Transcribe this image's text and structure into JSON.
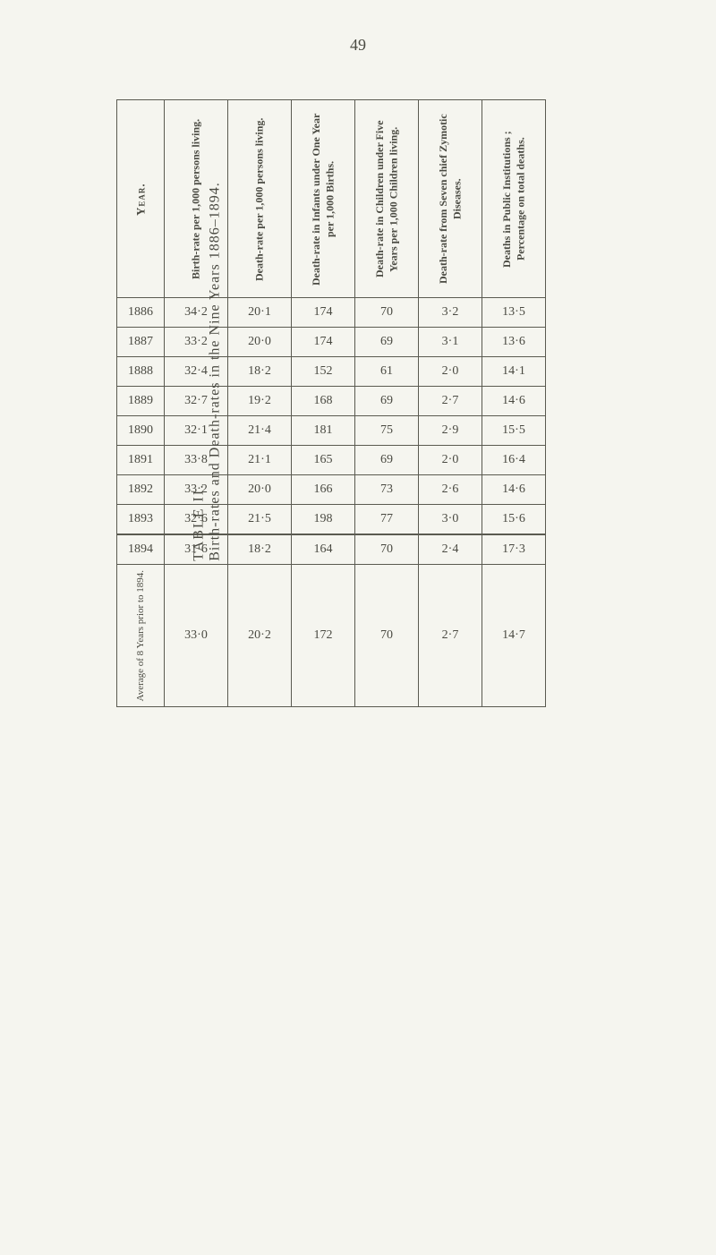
{
  "page_number": "49",
  "side_title_table": "TABLE II.",
  "side_title_caption": "Birth-rates and Death-rates in the Nine Years 1886–1894.",
  "headers": {
    "year": "Year.",
    "birth_rate": "Birth-rate per 1,000 persons living.",
    "death_rate": "Death-rate per 1,000 persons living.",
    "infants": "Death-rate in Infants under One Year per 1,000 Births.",
    "children": "Death-rate in Children under Five Years per 1,000 Children living.",
    "zymotic": "Death-rate from Seven chief Zymotic Diseases.",
    "public": "Deaths in Public Institutions ; Percentage on total deaths."
  },
  "rows": [
    {
      "year": "1886",
      "birth": "34·2",
      "death": "20·1",
      "infants": "174",
      "children": "70",
      "zymotic": "3·2",
      "public": "13·5"
    },
    {
      "year": "1887",
      "birth": "33·2",
      "death": "20·0",
      "infants": "174",
      "children": "69",
      "zymotic": "3·1",
      "public": "13·6"
    },
    {
      "year": "1888",
      "birth": "32·4",
      "death": "18·2",
      "infants": "152",
      "children": "61",
      "zymotic": "2·0",
      "public": "14·1"
    },
    {
      "year": "1889",
      "birth": "32·7",
      "death": "19·2",
      "infants": "168",
      "children": "69",
      "zymotic": "2·7",
      "public": "14·6"
    },
    {
      "year": "1890",
      "birth": "32·1",
      "death": "21·4",
      "infants": "181",
      "children": "75",
      "zymotic": "2·9",
      "public": "15·5"
    },
    {
      "year": "1891",
      "birth": "33·8",
      "death": "21·1",
      "infants": "165",
      "children": "69",
      "zymotic": "2·0",
      "public": "16·4"
    },
    {
      "year": "1892",
      "birth": "33·2",
      "death": "20·0",
      "infants": "166",
      "children": "73",
      "zymotic": "2·6",
      "public": "14·6"
    },
    {
      "year": "1893",
      "birth": "32·6",
      "death": "21·5",
      "infants": "198",
      "children": "77",
      "zymotic": "3·0",
      "public": "15·6"
    }
  ],
  "summary_1894": {
    "year": "1894",
    "birth": "31·6",
    "death": "18·2",
    "infants": "164",
    "children": "70",
    "zymotic": "2·4",
    "public": "17·3"
  },
  "average_row": {
    "label": "Average of 8 Years prior to 1894.",
    "birth": "33·0",
    "death": "20·2",
    "infants": "172",
    "children": "70",
    "zymotic": "2·7",
    "public": "14·7"
  },
  "colors": {
    "background": "#f5f5ef",
    "text": "#4a4a42",
    "border": "#5a5a50"
  }
}
